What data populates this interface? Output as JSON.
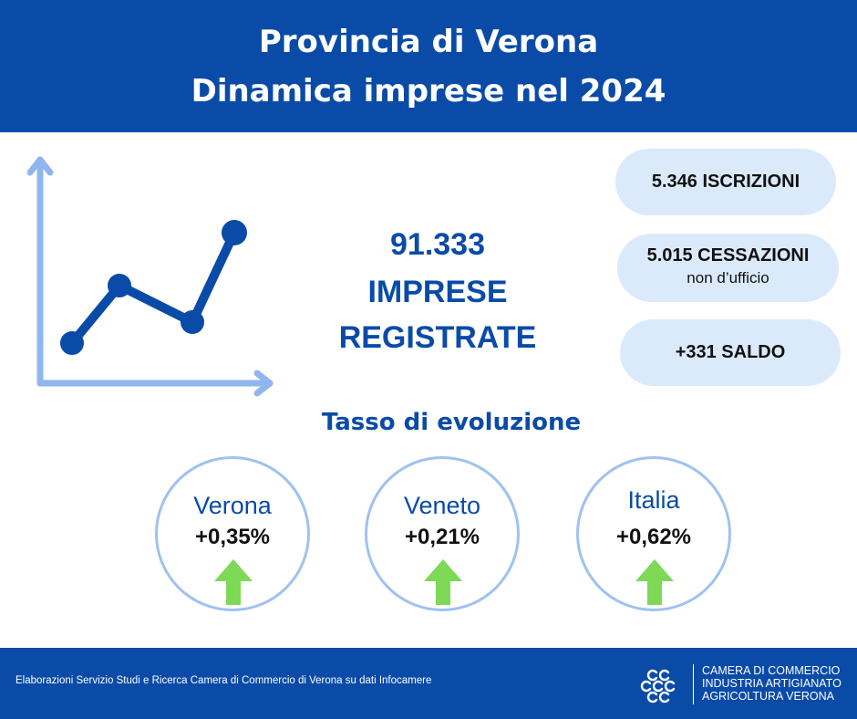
{
  "header": {
    "title_line1": "Provincia di Verona",
    "title_line2": "Dinamica imprese nel 2024"
  },
  "kpi": {
    "number": "91.333",
    "label_line1": "IMPRESE",
    "label_line2": "REGISTRATE"
  },
  "pills": [
    {
      "main": "5.346 ISCRIZIONI"
    },
    {
      "main": "5.015 CESSAZIONI",
      "sub": "non d’ufficio"
    },
    {
      "main": "+331 SALDO"
    }
  ],
  "section_title": "Tasso di evoluzione",
  "rates": [
    {
      "name": "Verona",
      "value": "+0,35%",
      "trend": "up-arrow-icon"
    },
    {
      "name": "Veneto",
      "value": "+0,21%",
      "trend": "up-arrow-icon"
    },
    {
      "name": "Italia",
      "value": "+0,62%",
      "trend": "up-arrow-icon"
    }
  ],
  "footer": {
    "source": "Elaborazioni Servizio Studi e Ricerca Camera di Commercio di Verona su dati Infocamere",
    "logo_line1": "CAMERA DI COMMERCIO",
    "logo_line2": "INDUSTRIA ARTIGIANATO",
    "logo_line3": "AGRICOLTURA VERONA"
  },
  "colors": {
    "brand_blue": "#0a4ba8",
    "light_blue": "#dbeafb",
    "axis_blue": "#8fb6ee",
    "arrow_green": "#7ed957"
  }
}
